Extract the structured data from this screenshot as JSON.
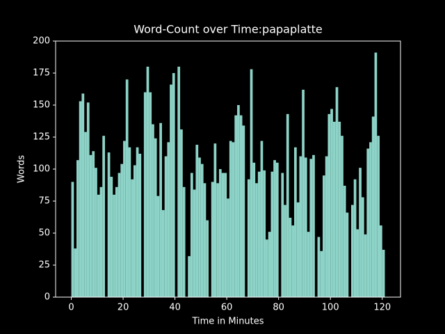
{
  "chart_data": {
    "type": "bar",
    "title": "Word-Count over Time:papaplatte",
    "x_label": "Time in Minutes",
    "y_label": "Words",
    "color": "#8dd3c7",
    "x": [
      0,
      1,
      2,
      3,
      4,
      5,
      6,
      7,
      8,
      9,
      10,
      11,
      12,
      13,
      14,
      15,
      16,
      17,
      18,
      19,
      20,
      21,
      22,
      23,
      24,
      25,
      26,
      27,
      28,
      29,
      30,
      31,
      32,
      33,
      34,
      35,
      36,
      37,
      38,
      39,
      40,
      41,
      42,
      43,
      44,
      45,
      46,
      47,
      48,
      49,
      50,
      51,
      52,
      53,
      54,
      55,
      56,
      57,
      58,
      59,
      60,
      61,
      62,
      63,
      64,
      65,
      66,
      67,
      68,
      69,
      70,
      71,
      72,
      73,
      74,
      75,
      76,
      77,
      78,
      79,
      80,
      81,
      82,
      83,
      84,
      85,
      86,
      87,
      88,
      89,
      90,
      91,
      92,
      93,
      94,
      95,
      96,
      97,
      98,
      99,
      100,
      101,
      102,
      103,
      104,
      105,
      106,
      107,
      108,
      109,
      110,
      111,
      112,
      113,
      114,
      115,
      116,
      117,
      118,
      119,
      120
    ],
    "values": [
      90,
      38,
      107,
      153,
      159,
      129,
      152,
      111,
      114,
      101,
      80,
      86,
      126,
      0,
      113,
      94,
      80,
      86,
      97,
      104,
      122,
      170,
      117,
      92,
      103,
      117,
      112,
      0,
      160,
      180,
      160,
      135,
      124,
      79,
      136,
      68,
      110,
      121,
      166,
      175,
      0,
      180,
      131,
      86,
      0,
      32,
      97,
      84,
      119,
      109,
      104,
      89,
      60,
      0,
      90,
      120,
      89,
      100,
      97,
      97,
      77,
      122,
      121,
      142,
      150,
      142,
      134,
      0,
      92,
      178,
      105,
      89,
      98,
      122,
      99,
      45,
      51,
      98,
      107,
      105,
      0,
      97,
      72,
      143,
      62,
      56,
      117,
      74,
      110,
      162,
      109,
      51,
      108,
      111,
      0,
      47,
      36,
      95,
      110,
      143,
      147,
      137,
      164,
      137,
      126,
      87,
      66,
      0,
      72,
      92,
      53,
      101,
      78,
      49,
      116,
      121,
      141,
      191,
      126,
      56,
      37
    ],
    "xlim": [
      -6.05,
      127.05
    ],
    "ylim": [
      0,
      200
    ],
    "xticks": [
      0,
      20,
      40,
      60,
      80,
      100,
      120
    ],
    "yticks": [
      0,
      25,
      50,
      75,
      100,
      125,
      150,
      175,
      200
    ]
  }
}
